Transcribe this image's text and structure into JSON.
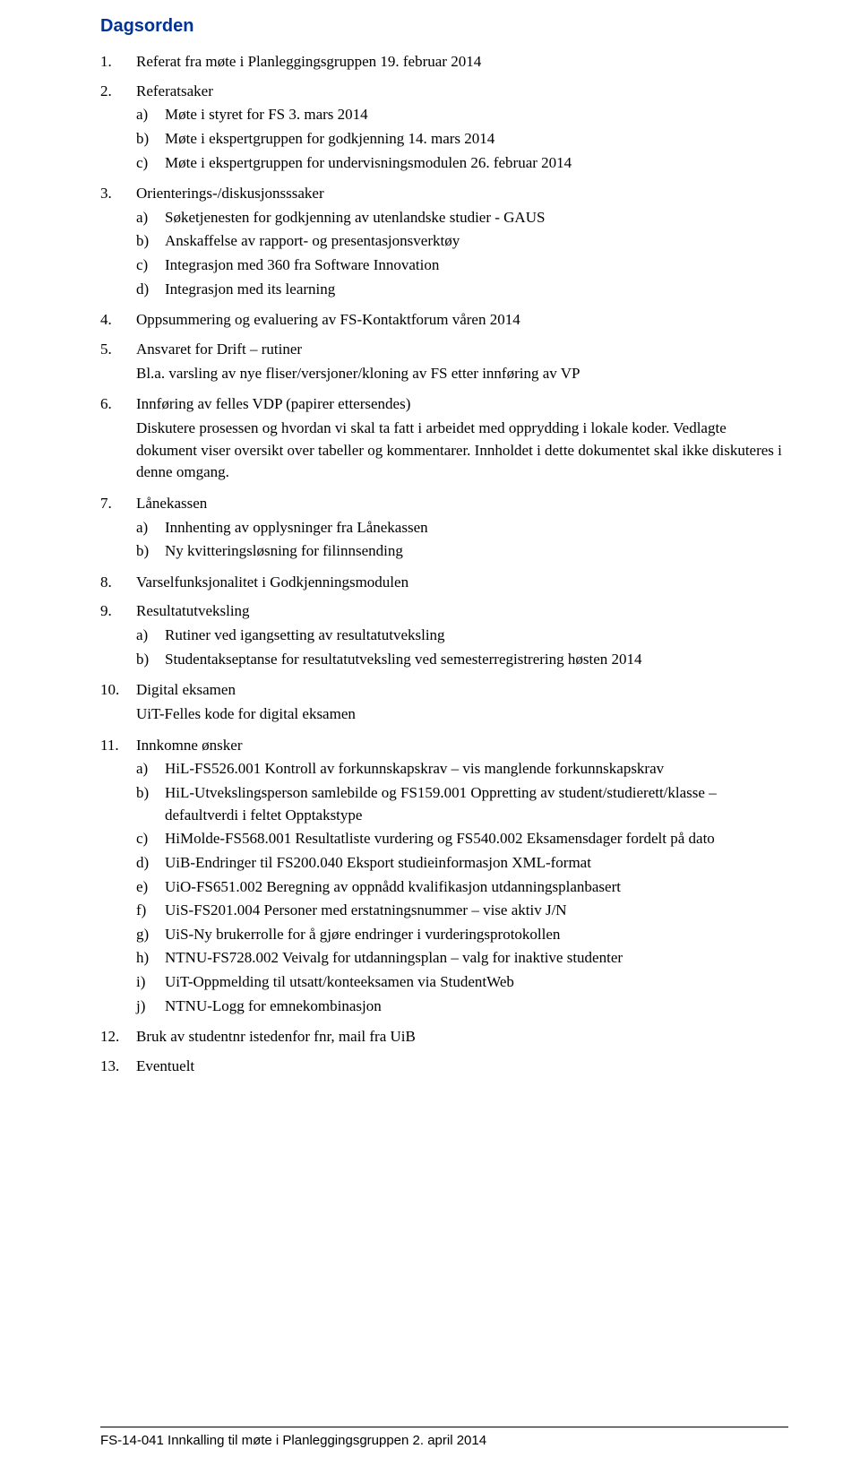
{
  "title": "Dagsorden",
  "items": [
    {
      "num": "1.",
      "text": "Referat fra møte i Planleggingsgruppen 19. februar 2014"
    },
    {
      "num": "2.",
      "text": "Referatsaker",
      "sub": [
        {
          "l": "a)",
          "t": "Møte i styret for FS 3. mars 2014"
        },
        {
          "l": "b)",
          "t": "Møte i ekspertgruppen for godkjenning 14. mars 2014"
        },
        {
          "l": "c)",
          "t": "Møte i ekspertgruppen for undervisningsmodulen 26. februar 2014"
        }
      ]
    },
    {
      "num": "3.",
      "text": "Orienterings-/diskusjonsssaker",
      "sub": [
        {
          "l": "a)",
          "t": "Søketjenesten for godkjenning av utenlandske studier - GAUS"
        },
        {
          "l": "b)",
          "t": "Anskaffelse av rapport- og presentasjonsverktøy"
        },
        {
          "l": "c)",
          "t": "Integrasjon med 360 fra Software Innovation"
        },
        {
          "l": "d)",
          "t": "Integrasjon med its learning"
        }
      ]
    },
    {
      "num": "4.",
      "text": "Oppsummering og evaluering av FS-Kontaktforum våren 2014"
    },
    {
      "num": "5.",
      "text": "Ansvaret for Drift – rutiner",
      "paras": [
        "Bl.a. varsling av nye fliser/versjoner/kloning av FS etter innføring av VP"
      ]
    },
    {
      "num": "6.",
      "text": "Innføring av felles VDP (papirer ettersendes)",
      "paras": [
        "Diskutere prosessen og hvordan vi skal ta fatt i arbeidet med opprydding i lokale koder. Vedlagte dokument viser oversikt over tabeller og kommentarer. Innholdet i dette dokumentet skal ikke diskuteres i denne omgang."
      ]
    },
    {
      "num": "7.",
      "text": "Lånekassen",
      "sub": [
        {
          "l": "a)",
          "t": "Innhenting av opplysninger fra Lånekassen"
        },
        {
          "l": "b)",
          "t": "Ny kvitteringsløsning for filinnsending"
        }
      ]
    },
    {
      "num": "8.",
      "text": "Varselfunksjonalitet i Godkjenningsmodulen"
    },
    {
      "num": "9.",
      "text": "Resultatutveksling",
      "sub": [
        {
          "l": "a)",
          "t": "Rutiner ved igangsetting av resultatutveksling"
        },
        {
          "l": "b)",
          "t": "Studentakseptanse for resultatutveksling ved semesterregistrering høsten 2014"
        }
      ]
    },
    {
      "num": "10.",
      "text": "Digital eksamen",
      "paras": [
        "UiT-Felles kode for digital eksamen"
      ]
    },
    {
      "num": "11.",
      "text": "Innkomne ønsker",
      "sub": [
        {
          "l": "a)",
          "t": "HiL-FS526.001 Kontroll av forkunnskapskrav – vis manglende forkunnskapskrav"
        },
        {
          "l": "b)",
          "t": "HiL-Utvekslingsperson samlebilde og FS159.001 Oppretting av student/studierett/klasse – defaultverdi i feltet Opptakstype"
        },
        {
          "l": "c)",
          "t": "HiMolde-FS568.001 Resultatliste vurdering og FS540.002 Eksamensdager fordelt på dato"
        },
        {
          "l": "d)",
          "t": "UiB-Endringer til FS200.040 Eksport studieinformasjon XML-format"
        },
        {
          "l": "e)",
          "t": "UiO-FS651.002 Beregning av oppnådd kvalifikasjon utdanningsplanbasert"
        },
        {
          "l": "f)",
          "t": "UiS-FS201.004 Personer med erstatningsnummer – vise aktiv J/N"
        },
        {
          "l": "g)",
          "t": "UiS-Ny brukerrolle for å gjøre endringer i vurderingsprotokollen"
        },
        {
          "l": "h)",
          "t": "NTNU-FS728.002 Veivalg for utdanningsplan – valg for inaktive studenter"
        },
        {
          "l": "i)",
          "t": "UiT-Oppmelding til utsatt/konteeksamen via StudentWeb"
        },
        {
          "l": "j)",
          "t": "NTNU-Logg for emnekombinasjon"
        }
      ]
    },
    {
      "num": "12.",
      "text": "Bruk av studentnr istedenfor fnr, mail fra UiB"
    },
    {
      "num": "13.",
      "text": "Eventuelt"
    }
  ],
  "footer": "FS-14-041  Innkalling til møte i Planleggingsgruppen 2. april 2014"
}
